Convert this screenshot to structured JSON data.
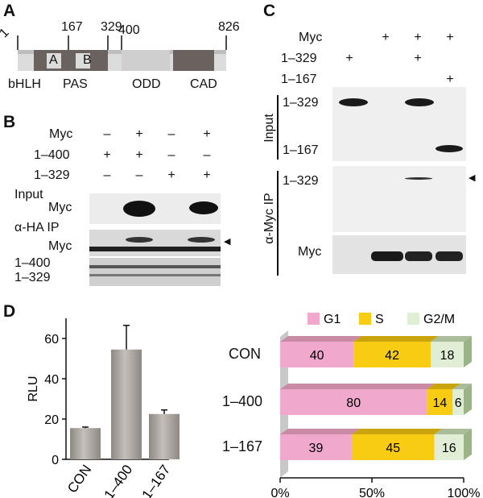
{
  "panels": {
    "A": "A",
    "B": "B",
    "C": "C",
    "D": "D"
  },
  "panelA": {
    "positions": [
      "1",
      "167",
      "329",
      "400",
      "826"
    ],
    "domain_letters": [
      "A",
      "B"
    ],
    "domain_names": [
      "bHLH",
      "PAS",
      "ODD",
      "CAD"
    ]
  },
  "panelB": {
    "row_labels": [
      "Myc",
      "1–400",
      "1–329"
    ],
    "rows": [
      [
        "–",
        "+",
        "–",
        "+"
      ],
      [
        "+",
        "+",
        "–",
        "–"
      ],
      [
        "–",
        "–",
        "+",
        "+"
      ]
    ],
    "input_label": "Input",
    "input_myc": "Myc",
    "ip_label": "α-HA IP",
    "ip_myc": "Myc",
    "ip_lower_1": "1–400",
    "ip_lower_2": "1–329",
    "arrow": "◀"
  },
  "panelC": {
    "row_labels": [
      "Myc",
      "1–329",
      "1–167"
    ],
    "rows": [
      [
        "",
        "+",
        "+",
        "+"
      ],
      [
        "+",
        "",
        "+",
        ""
      ],
      [
        "",
        "",
        "",
        "+"
      ]
    ],
    "input_label": "Input",
    "input_band_1": "1–329",
    "input_band_2": "1–167",
    "ip_label": "α-Myc IP",
    "ip_band": "1–329",
    "ip_myc": "Myc",
    "arrow": "◀"
  },
  "chart_data": [
    {
      "type": "bar",
      "categories": [
        "CON",
        "1–400",
        "1–167"
      ],
      "values": [
        15.5,
        54.5,
        22.5
      ],
      "errors": [
        0.5,
        12,
        2
      ],
      "ylabel": "RLU",
      "ylim": [
        0,
        70
      ],
      "yticks": [
        0,
        20,
        40,
        60
      ],
      "color": "#a9a39d"
    },
    {
      "type": "bar",
      "stacked": true,
      "orientation": "horizontal",
      "categories": [
        "CON",
        "1–400",
        "1–167"
      ],
      "series": [
        {
          "name": "G1",
          "values": [
            40,
            80,
            39
          ],
          "color": "#f0a8cc"
        },
        {
          "name": "S",
          "values": [
            42,
            14,
            45
          ],
          "color": "#f7cc12"
        },
        {
          "name": "G2/M",
          "values": [
            18,
            6,
            16
          ],
          "color": "#dfeed4"
        }
      ],
      "xticks": [
        "0%",
        "50%",
        "100%"
      ],
      "legend": "top"
    }
  ]
}
